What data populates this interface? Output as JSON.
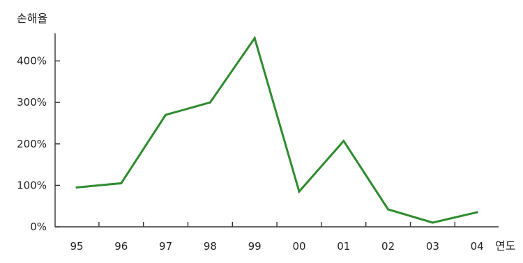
{
  "chart_data": {
    "type": "line",
    "ylabel": "손해율",
    "xlabel": "연도",
    "categories": [
      "95",
      "96",
      "97",
      "98",
      "99",
      "00",
      "01",
      "02",
      "03",
      "04"
    ],
    "series": [
      {
        "values": [
          95,
          105,
          270,
          300,
          455,
          85,
          207,
          42,
          10,
          35
        ],
        "color": "#2e8b2e"
      }
    ],
    "ylim": [
      0,
      460
    ],
    "yticks": [
      0,
      100,
      200,
      300,
      400
    ],
    "yticklabels": [
      "0%",
      "100%",
      "200%",
      "300%",
      "400%"
    ],
    "grid": false,
    "legend": "none"
  }
}
